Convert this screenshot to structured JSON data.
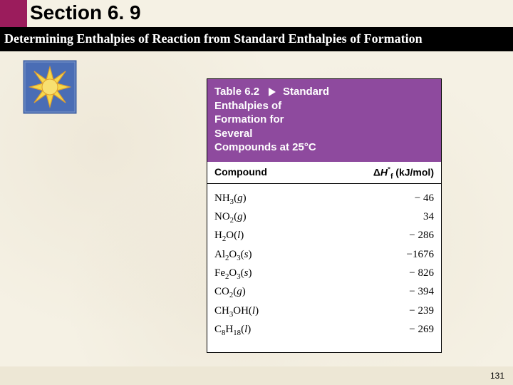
{
  "header": {
    "section_label": "Section 6. 9",
    "subtitle": "Determining Enthalpies of Reaction from Standard Enthalpies of Formation"
  },
  "sun_icon": {
    "bg_color": "#4a6db5",
    "border_color": "#3a5a9a",
    "sun_fill": "#f5d84a",
    "sun_stroke": "#e0a030"
  },
  "table": {
    "label": "Table 6.2",
    "title_line1": "Standard",
    "title_line2": "Enthalpies of",
    "title_line3": "Formation for",
    "title_line4": "Several",
    "title_line5": "Compounds at 25°C",
    "header_bg": "#8e4a9e",
    "col_compound": "Compound",
    "col_value_html": "ΔH°f (kJ/mol)",
    "rows": [
      {
        "compound_html": "NH<sub>3</sub>(<i>g</i>)",
        "value": "− 46"
      },
      {
        "compound_html": "NO<sub>2</sub>(<i>g</i>)",
        "value": "34"
      },
      {
        "compound_html": "H<sub>2</sub>O(<i>l</i>)",
        "value": "− 286"
      },
      {
        "compound_html": "Al<sub>2</sub>O<sub>3</sub>(<i>s</i>)",
        "value": "−1676"
      },
      {
        "compound_html": "Fe<sub>2</sub>O<sub>3</sub>(<i>s</i>)",
        "value": "− 826"
      },
      {
        "compound_html": "CO<sub>2</sub>(<i>g</i>)",
        "value": "− 394"
      },
      {
        "compound_html": "CH<sub>3</sub>OH(<i>l</i>)",
        "value": "− 239"
      },
      {
        "compound_html": "C<sub>8</sub>H<sub>18</sub>(<i>l</i>)",
        "value": "− 269"
      }
    ]
  },
  "page_number": "131"
}
